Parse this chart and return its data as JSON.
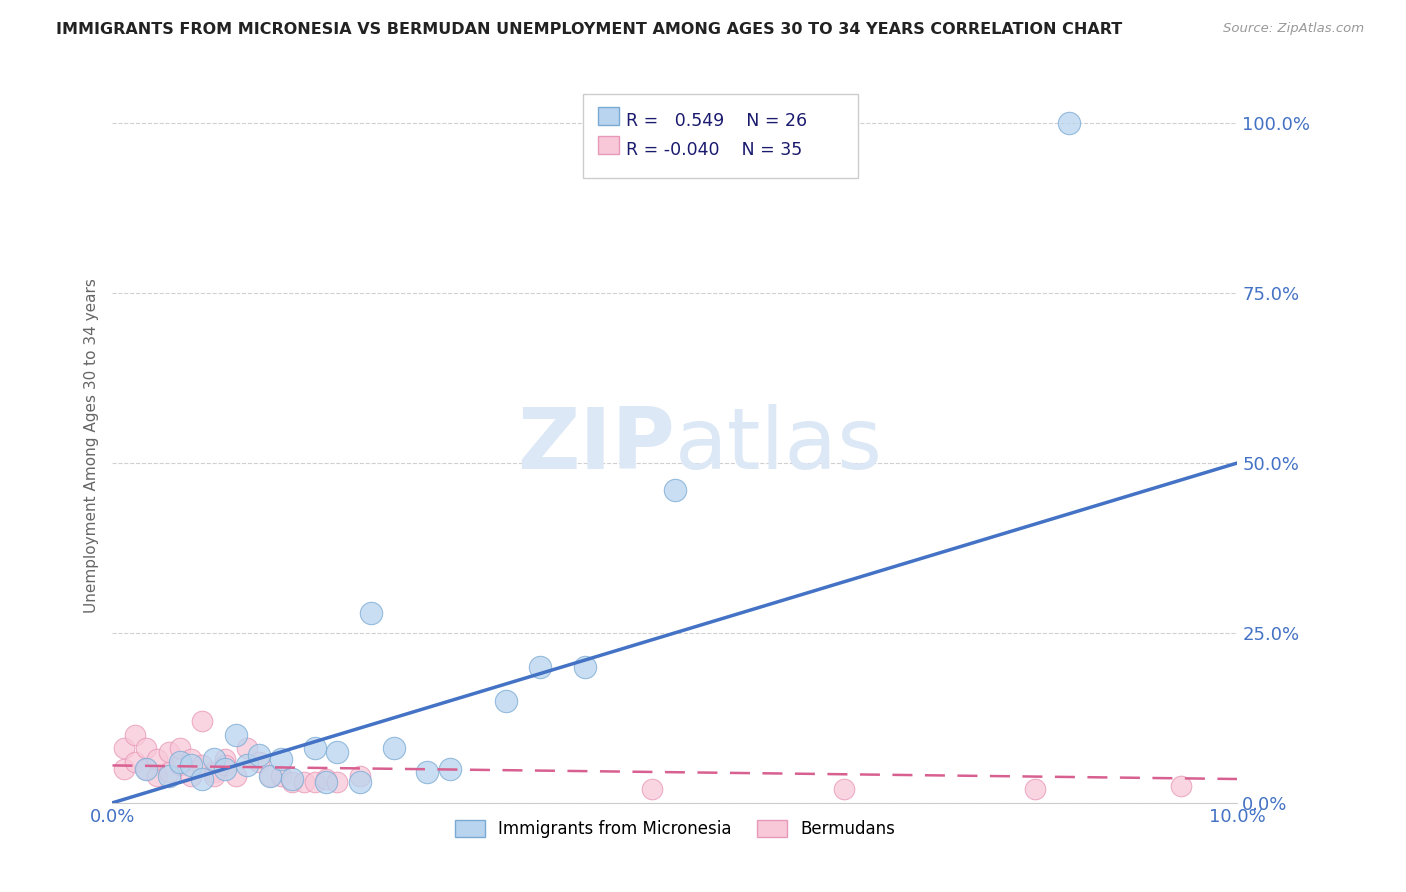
{
  "title": "IMMIGRANTS FROM MICRONESIA VS BERMUDAN UNEMPLOYMENT AMONG AGES 30 TO 34 YEARS CORRELATION CHART",
  "source": "Source: ZipAtlas.com",
  "ylabel": "Unemployment Among Ages 30 to 34 years",
  "xlim": [
    0.0,
    0.1
  ],
  "ylim": [
    0.0,
    1.05
  ],
  "ytick_labels": [
    "0.0%",
    "25.0%",
    "50.0%",
    "75.0%",
    "100.0%"
  ],
  "ytick_vals": [
    0.0,
    0.25,
    0.5,
    0.75,
    1.0
  ],
  "xtick_labels": [
    "0.0%",
    "10.0%"
  ],
  "xtick_vals": [
    0.0,
    0.1
  ],
  "legend_r_blue": "0.549",
  "legend_n_blue": "26",
  "legend_r_pink": "-0.040",
  "legend_n_pink": "35",
  "blue_fill_color": "#b8d4ee",
  "pink_fill_color": "#f8c8d8",
  "blue_edge_color": "#7aaad4",
  "pink_edge_color": "#e898b8",
  "blue_line_color": "#4472c4",
  "pink_line_color": "#d86090",
  "grid_color": "#d0d0d0",
  "watermark_color": "#dce8f5",
  "blue_scatter_x": [
    0.003,
    0.005,
    0.006,
    0.007,
    0.008,
    0.009,
    0.01,
    0.011,
    0.012,
    0.013,
    0.014,
    0.015,
    0.016,
    0.018,
    0.019,
    0.02,
    0.022,
    0.023,
    0.025,
    0.028,
    0.03,
    0.035,
    0.038,
    0.042,
    0.05,
    0.085
  ],
  "blue_scatter_y": [
    0.05,
    0.04,
    0.06,
    0.055,
    0.035,
    0.065,
    0.05,
    0.1,
    0.055,
    0.07,
    0.04,
    0.065,
    0.035,
    0.08,
    0.03,
    0.075,
    0.03,
    0.28,
    0.08,
    0.045,
    0.05,
    0.15,
    0.2,
    0.2,
    0.46,
    1.0
  ],
  "pink_scatter_x": [
    0.001,
    0.001,
    0.002,
    0.002,
    0.003,
    0.003,
    0.004,
    0.004,
    0.005,
    0.005,
    0.006,
    0.006,
    0.007,
    0.007,
    0.008,
    0.008,
    0.009,
    0.009,
    0.01,
    0.01,
    0.011,
    0.012,
    0.013,
    0.014,
    0.015,
    0.016,
    0.017,
    0.018,
    0.019,
    0.02,
    0.022,
    0.048,
    0.065,
    0.082,
    0.095
  ],
  "pink_scatter_y": [
    0.05,
    0.08,
    0.06,
    0.1,
    0.05,
    0.08,
    0.04,
    0.065,
    0.045,
    0.075,
    0.055,
    0.08,
    0.04,
    0.065,
    0.055,
    0.12,
    0.045,
    0.04,
    0.065,
    0.055,
    0.04,
    0.08,
    0.06,
    0.04,
    0.04,
    0.03,
    0.03,
    0.03,
    0.035,
    0.03,
    0.04,
    0.02,
    0.02,
    0.02,
    0.025
  ],
  "blue_trend_x": [
    0.0,
    0.1
  ],
  "blue_trend_y": [
    0.0,
    0.5
  ],
  "pink_trend_x": [
    0.0,
    0.1
  ],
  "pink_trend_y": [
    0.055,
    0.035
  ]
}
